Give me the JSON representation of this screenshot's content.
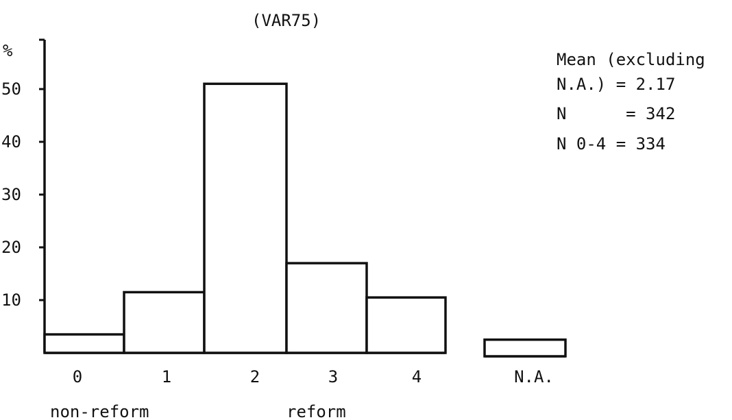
{
  "chart_data": {
    "type": "bar",
    "title": "(VAR75)",
    "ylabel": "%",
    "yticks": [
      10,
      20,
      30,
      40,
      50
    ],
    "ylim": [
      0,
      55
    ],
    "categories": [
      "0",
      "1",
      "2",
      "3",
      "4",
      "N.A."
    ],
    "values": [
      3.5,
      11.5,
      51,
      17,
      10.5,
      2.5
    ],
    "scale_labels": {
      "low": "non-reform",
      "high": "reform"
    },
    "annotations": [
      "Mean (excluding",
      "N.A.) = 2.17",
      "N      = 342",
      "N 0-4 = 334"
    ],
    "grid": false,
    "legend": "none"
  }
}
